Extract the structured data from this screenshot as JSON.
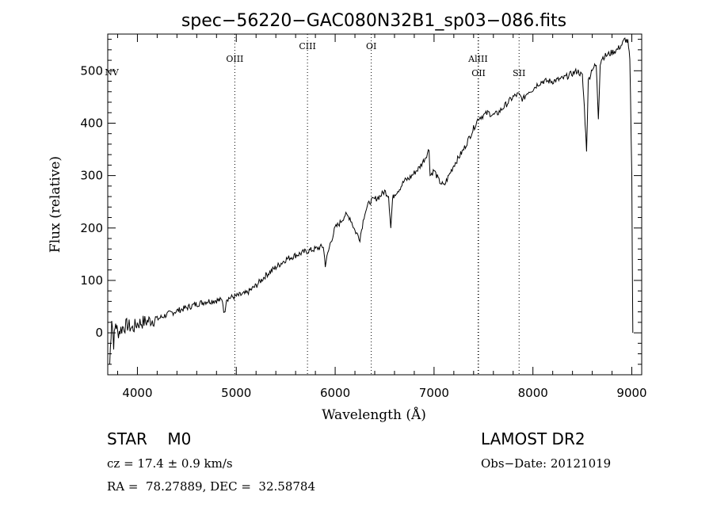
{
  "chart_data": {
    "type": "line",
    "title": "spec−56220−GAC080N32B1_sp03−086.fits",
    "xlabel": "Wavelength (Å)",
    "ylabel": "Flux (relative)",
    "xlim": [
      3700,
      9100
    ],
    "ylim": [
      -80,
      570
    ],
    "xticks": [
      4000,
      5000,
      6000,
      7000,
      8000,
      9000
    ],
    "yticks": [
      0,
      100,
      200,
      300,
      400,
      500
    ],
    "grid": false,
    "series": [
      {
        "x": [
          3720,
          3740,
          3760,
          3780,
          3800,
          3850,
          3900,
          3950,
          4000,
          4050,
          4100,
          4150,
          4200,
          4300,
          4400,
          4500,
          4600,
          4700,
          4800,
          4860,
          4880,
          4900,
          5000,
          5100,
          5200,
          5300,
          5400,
          5500,
          5600,
          5700,
          5800,
          5880,
          5900,
          5950,
          6000,
          6050,
          6100,
          6150,
          6200,
          6250,
          6300,
          6350,
          6400,
          6450,
          6500,
          6540,
          6563,
          6580,
          6600,
          6650,
          6700,
          6750,
          6800,
          6850,
          6900,
          6950,
          6960,
          7000,
          7050,
          7100,
          7150,
          7200,
          7300,
          7350,
          7400,
          7450,
          7500,
          7550,
          7600,
          7650,
          7700,
          7750,
          7800,
          7850,
          7900,
          7950,
          8000,
          8050,
          8100,
          8200,
          8300,
          8350,
          8400,
          8450,
          8500,
          8520,
          8542,
          8560,
          8600,
          8640,
          8662,
          8680,
          8700,
          8750,
          8800,
          8850,
          8900,
          8930,
          8960,
          8980,
          9000,
          9010
        ],
        "y": [
          -60,
          30,
          -20,
          20,
          0,
          10,
          15,
          8,
          18,
          20,
          22,
          25,
          26,
          35,
          42,
          48,
          55,
          60,
          62,
          62,
          35,
          65,
          70,
          75,
          90,
          110,
          125,
          140,
          148,
          155,
          160,
          165,
          130,
          170,
          200,
          210,
          225,
          220,
          195,
          180,
          230,
          250,
          255,
          260,
          270,
          262,
          200,
          255,
          265,
          275,
          290,
          295,
          305,
          315,
          330,
          350,
          300,
          310,
          290,
          280,
          300,
          320,
          350,
          370,
          390,
          410,
          415,
          420,
          415,
          420,
          430,
          440,
          450,
          455,
          445,
          460,
          465,
          475,
          480,
          480,
          485,
          490,
          495,
          500,
          490,
          430,
          350,
          480,
          505,
          510,
          410,
          515,
          525,
          530,
          535,
          540,
          550,
          560,
          555,
          520,
          300,
          0
        ]
      }
    ],
    "line_markers": [
      {
        "label": "NV",
        "x": 3740
      },
      {
        "label": "OIII",
        "x": 4985
      },
      {
        "label": "CIII",
        "x": 5720
      },
      {
        "label": "OI",
        "x": 6365
      },
      {
        "label": "AlIII",
        "x": 7445
      },
      {
        "label": "OII",
        "x": 7450
      },
      {
        "label": "SII",
        "x": 7860
      }
    ]
  },
  "info": {
    "object": "STAR    M0",
    "survey": "LAMOST DR2",
    "cz": "cz = 17.4 ± 0.9 km/s",
    "obs_date": "Obs−Date: 20121019",
    "coords": "RA =  78.27889, DEC =  32.58784"
  }
}
